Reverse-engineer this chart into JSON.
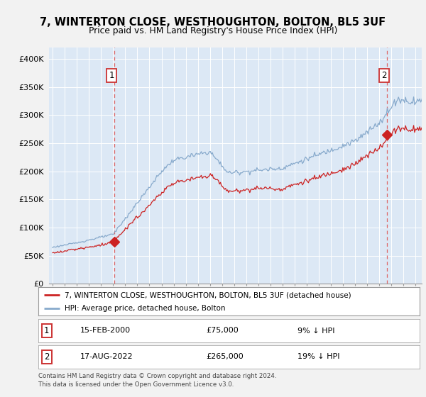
{
  "title1": "7, WINTERTON CLOSE, WESTHOUGHTON, BOLTON, BL5 3UF",
  "title2": "Price paid vs. HM Land Registry's House Price Index (HPI)",
  "fig_bg": "#f2f2f2",
  "plot_bg": "#dce8f5",
  "sale1_date": 2000.12,
  "sale1_price": 75000,
  "sale2_date": 2022.63,
  "sale2_price": 265000,
  "legend_line1": "7, WINTERTON CLOSE, WESTHOUGHTON, BOLTON, BL5 3UF (detached house)",
  "legend_line2": "HPI: Average price, detached house, Bolton",
  "footer": "Contains HM Land Registry data © Crown copyright and database right 2024.\nThis data is licensed under the Open Government Licence v3.0.",
  "ylim": [
    0,
    420000
  ],
  "yticks": [
    0,
    50000,
    100000,
    150000,
    200000,
    250000,
    300000,
    350000,
    400000
  ],
  "ytick_labels": [
    "£0",
    "£50K",
    "£100K",
    "£150K",
    "£200K",
    "£250K",
    "£300K",
    "£350K",
    "£400K"
  ],
  "red_color": "#cc2222",
  "blue_color": "#88aacc",
  "vline_color": "#dd6666",
  "grid_color": "#ffffff",
  "annot1_date": "15-FEB-2000",
  "annot1_price": "£75,000",
  "annot1_hpi": "9% ↓ HPI",
  "annot2_date": "17-AUG-2022",
  "annot2_price": "£265,000",
  "annot2_hpi": "19% ↓ HPI",
  "box_edge": "#cc3333"
}
